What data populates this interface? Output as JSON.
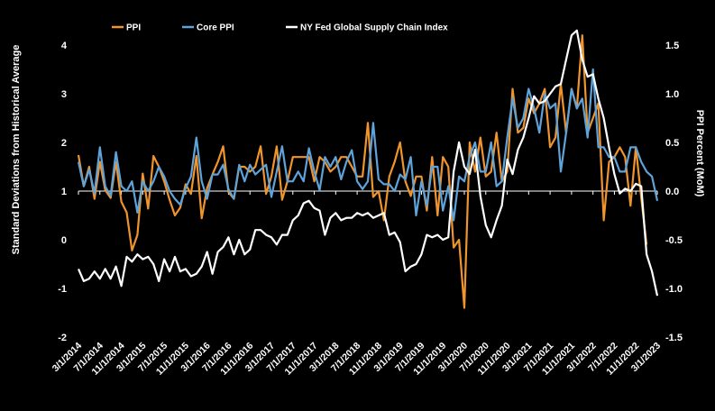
{
  "chart_data": {
    "type": "line",
    "x_dates": [
      "3/1/2014",
      "4/1/2014",
      "5/1/2014",
      "6/1/2014",
      "7/1/2014",
      "8/1/2014",
      "9/1/2014",
      "10/1/2014",
      "11/1/2014",
      "12/1/2014",
      "1/1/2015",
      "2/1/2015",
      "3/1/2015",
      "4/1/2015",
      "5/1/2015",
      "6/1/2015",
      "7/1/2015",
      "8/1/2015",
      "9/1/2015",
      "10/1/2015",
      "11/1/2015",
      "12/1/2015",
      "1/1/2016",
      "2/1/2016",
      "3/1/2016",
      "4/1/2016",
      "5/1/2016",
      "6/1/2016",
      "7/1/2016",
      "8/1/2016",
      "9/1/2016",
      "10/1/2016",
      "11/1/2016",
      "12/1/2016",
      "1/1/2017",
      "2/1/2017",
      "3/1/2017",
      "4/1/2017",
      "5/1/2017",
      "6/1/2017",
      "7/1/2017",
      "8/1/2017",
      "9/1/2017",
      "10/1/2017",
      "11/1/2017",
      "12/1/2017",
      "1/1/2018",
      "2/1/2018",
      "3/1/2018",
      "4/1/2018",
      "5/1/2018",
      "6/1/2018",
      "7/1/2018",
      "8/1/2018",
      "9/1/2018",
      "10/1/2018",
      "11/1/2018",
      "12/1/2018",
      "1/1/2019",
      "2/1/2019",
      "3/1/2019",
      "4/1/2019",
      "5/1/2019",
      "6/1/2019",
      "7/1/2019",
      "8/1/2019",
      "9/1/2019",
      "10/1/2019",
      "11/1/2019",
      "12/1/2019",
      "1/1/2020",
      "2/1/2020",
      "3/1/2020",
      "4/1/2020",
      "5/1/2020",
      "6/1/2020",
      "7/1/2020",
      "8/1/2020",
      "9/1/2020",
      "10/1/2020",
      "11/1/2020",
      "12/1/2020",
      "1/1/2021",
      "2/1/2021",
      "3/1/2021",
      "4/1/2021",
      "5/1/2021",
      "6/1/2021",
      "7/1/2021",
      "8/1/2021",
      "9/1/2021",
      "10/1/2021",
      "11/1/2021",
      "12/1/2021",
      "1/1/2022",
      "2/1/2022",
      "3/1/2022",
      "4/1/2022",
      "5/1/2022",
      "6/1/2022",
      "7/1/2022",
      "8/1/2022",
      "9/1/2022",
      "10/1/2022",
      "11/1/2022",
      "12/1/2022",
      "1/1/2023",
      "2/1/2023",
      "3/1/2023"
    ],
    "x_tick_labels": [
      "3/1/2014",
      "7/1/2014",
      "11/1/2014",
      "3/1/2015",
      "7/1/2015",
      "11/1/2015",
      "3/1/2016",
      "7/1/2016",
      "11/1/2016",
      "3/1/2017",
      "7/1/2017",
      "11/1/2017",
      "3/1/2018",
      "7/1/2018",
      "11/1/2018",
      "3/1/2019",
      "7/1/2019",
      "11/1/2019",
      "3/1/2020",
      "7/1/2020",
      "11/1/2020",
      "3/1/2021",
      "7/1/2021",
      "11/1/2021",
      "3/1/2022",
      "7/1/2022",
      "11/1/2022",
      "3/1/2023"
    ],
    "left_axis": {
      "label": "Standard Deviations from Historical Average",
      "min": -2,
      "max": 4,
      "ticks": [
        -2,
        -1,
        0,
        1,
        2,
        3,
        4
      ],
      "tick_labels": [
        "-2",
        "-1",
        "0",
        "1",
        "2",
        "3",
        "4"
      ]
    },
    "right_axis": {
      "label": "PPI Percent (MoM)",
      "min": -1.5,
      "max": 1.5,
      "ticks": [
        -1.5,
        -1.0,
        -0.5,
        0.0,
        0.5,
        1.0,
        1.5
      ],
      "tick_labels": [
        "-1.5",
        "-1.0",
        "-0.5",
        "0.0",
        "0.5",
        "1.0",
        "1.5"
      ]
    },
    "grid": false,
    "legend_position": "top",
    "series": [
      {
        "name": "PPI",
        "axis": "right",
        "color": "#F0952E",
        "values": [
          0.37,
          0.05,
          0.25,
          -0.08,
          0.3,
          0.01,
          -0.07,
          0.3,
          -0.11,
          -0.22,
          -0.61,
          -0.45,
          0.18,
          -0.18,
          0.36,
          0.25,
          0.1,
          -0.09,
          -0.25,
          -0.17,
          0.07,
          -0.03,
          0.36,
          -0.28,
          0.03,
          0.17,
          0.3,
          0.46,
          -0.01,
          -0.08,
          0.25,
          0.25,
          0.2,
          0.25,
          0.46,
          -0.03,
          0.15,
          0.46,
          -0.09,
          0.1,
          0.35,
          0.35,
          0.35,
          0.35,
          0.1,
          0.35,
          0.3,
          0.2,
          0.25,
          0.35,
          0.35,
          0.25,
          0.15,
          0.15,
          0.7,
          -0.06,
          0.0,
          -0.3,
          0.15,
          0.3,
          0.5,
          0.1,
          -0.05,
          0.15,
          0.15,
          -0.2,
          0.35,
          -0.25,
          0.35,
          0.25,
          -0.58,
          -0.5,
          -1.2,
          0.5,
          0.2,
          0.55,
          0.15,
          0.2,
          0.6,
          0.1,
          0.2,
          1.05,
          0.6,
          0.65,
          0.95,
          0.8,
          0.9,
          1.05,
          0.45,
          0.55,
          1.1,
          0.6,
          1.05,
          0.85,
          1.6,
          0.6,
          0.75,
          0.9,
          -0.3,
          0.3,
          0.35,
          0.45,
          0.35,
          -0.15,
          0.45,
          -0.07,
          -0.55
        ],
        "legend_label": "PPI"
      },
      {
        "name": "Core PPI",
        "axis": "right",
        "color": "#5EA3DA",
        "values": [
          0.3,
          0.05,
          0.22,
          -0.02,
          0.45,
          0.05,
          -0.05,
          0.4,
          0.05,
          0.0,
          0.1,
          -0.22,
          0.1,
          0.0,
          0.1,
          0.25,
          0.15,
          0.0,
          -0.08,
          -0.14,
          0.03,
          0.15,
          0.55,
          0.1,
          -0.08,
          0.17,
          0.17,
          0.27,
          0.02,
          -0.08,
          0.27,
          0.1,
          0.27,
          0.17,
          0.22,
          0.27,
          -0.06,
          0.2,
          0.46,
          0.1,
          0.1,
          0.2,
          0.1,
          0.44,
          0.2,
          0.01,
          0.35,
          0.25,
          0.35,
          0.12,
          0.3,
          0.42,
          0.1,
          0.02,
          0.1,
          0.7,
          0.12,
          0.07,
          0.07,
          0.0,
          0.17,
          0.12,
          0.35,
          -0.25,
          0.1,
          -0.15,
          0.25,
          0.25,
          -0.2,
          0.05,
          -0.3,
          0.15,
          0.1,
          0.35,
          0.5,
          0.2,
          0.2,
          0.5,
          0.05,
          0.1,
          0.55,
          0.95,
          0.65,
          0.75,
          1.05,
          0.85,
          0.6,
          1.0,
          0.85,
          0.9,
          0.2,
          0.6,
          1.05,
          0.85,
          0.95,
          0.55,
          1.25,
          0.45,
          0.45,
          0.35,
          0.35,
          0.2,
          0.2,
          0.45,
          0.45,
          0.3,
          0.2,
          0.15,
          -0.1
        ]
      },
      {
        "name": "NY Fed Global Supply Chain Index",
        "axis": "left",
        "color": "#FFFFFF",
        "values": [
          -0.6,
          -0.85,
          -0.8,
          -0.65,
          -0.8,
          -0.6,
          -0.8,
          -0.55,
          -0.95,
          -0.35,
          -0.45,
          -0.3,
          -0.4,
          -0.35,
          -0.5,
          -0.85,
          -0.4,
          -0.65,
          -0.35,
          -0.65,
          -0.6,
          -0.75,
          -0.7,
          -0.55,
          -0.25,
          -0.7,
          -0.25,
          -0.15,
          0.05,
          -0.3,
          0.0,
          -0.3,
          -0.2,
          0.2,
          0.2,
          0.1,
          0.05,
          -0.1,
          0.1,
          0.1,
          0.4,
          0.5,
          0.75,
          0.8,
          0.65,
          0.6,
          0.1,
          0.45,
          0.55,
          0.4,
          0.45,
          0.45,
          0.55,
          0.5,
          0.55,
          0.45,
          0.5,
          0.55,
          0.1,
          0.15,
          -0.05,
          -0.65,
          -0.55,
          -0.5,
          -0.3,
          0.1,
          0.05,
          0.1,
          0.0,
          0.05,
          1.4,
          2.0,
          1.5,
          1.35,
          1.85,
          0.9,
          0.3,
          0.05,
          0.4,
          0.7,
          1.65,
          1.35,
          1.85,
          2.1,
          2.5,
          2.95,
          2.8,
          2.85,
          3.0,
          3.15,
          3.2,
          3.7,
          4.2,
          4.3,
          3.7,
          3.35,
          3.4,
          2.9,
          2.5,
          1.9,
          1.35,
          0.95,
          1.05,
          1.0,
          1.15,
          1.1,
          -0.3,
          -0.65,
          -1.15
        ]
      }
    ]
  }
}
